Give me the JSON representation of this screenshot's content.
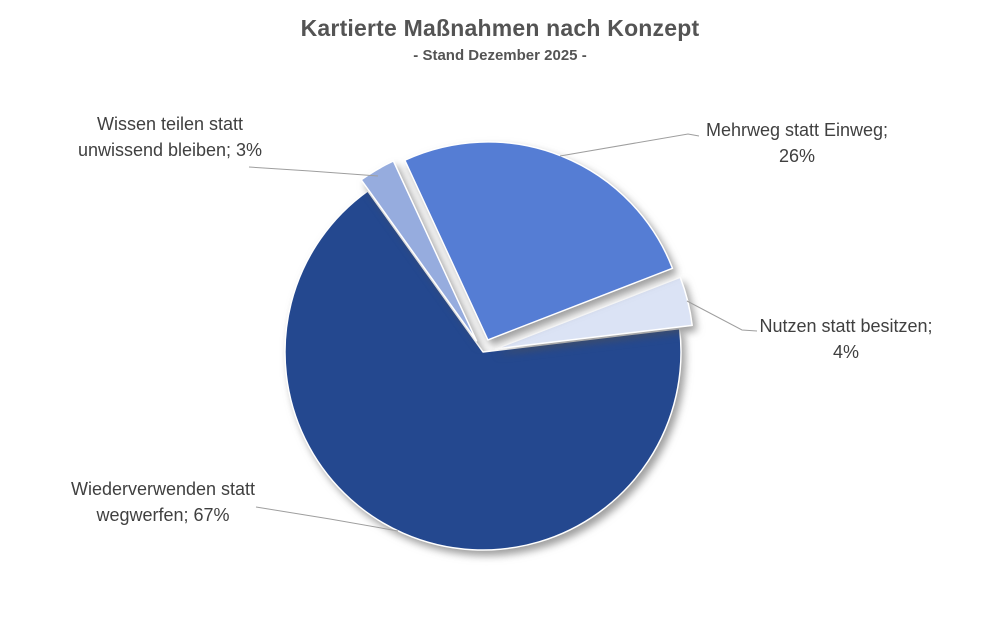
{
  "chart_data": {
    "type": "pie",
    "title": "Kartierte Maßnahmen nach Konzept",
    "subtitle": "- Stand Dezember 2025 -",
    "unit": "%",
    "start_angle_deg": 335.2,
    "direction": "clockwise",
    "legend": "none",
    "slices": [
      {
        "name": "Mehrweg statt Einweg",
        "value": 26,
        "color": "#557DD4",
        "exploded": true,
        "label_lines": [
          "Mehrweg statt Einweg;",
          "26%"
        ]
      },
      {
        "name": "Nutzen statt besitzen",
        "value": 4,
        "color": "#DBE3F5",
        "exploded": true,
        "label_lines": [
          "Nutzen statt besitzen;",
          "4%"
        ]
      },
      {
        "name": "Wiederverwenden statt wegwerfen",
        "value": 67,
        "color": "#24488F",
        "exploded": false,
        "label_lines": [
          "Wiederverwenden statt",
          "wegwerfen; 67%"
        ]
      },
      {
        "name": "Wissen teilen statt unwissend bleiben",
        "value": 3,
        "color": "#96ACDE",
        "exploded": true,
        "label_lines": [
          "Wissen teilen statt",
          "unwissend bleiben; 3%"
        ]
      }
    ],
    "colors": {
      "label_text": "#404040",
      "leader_line": "#9E9E9E",
      "title_text": "#545454",
      "background": "#FFFFFF"
    }
  }
}
